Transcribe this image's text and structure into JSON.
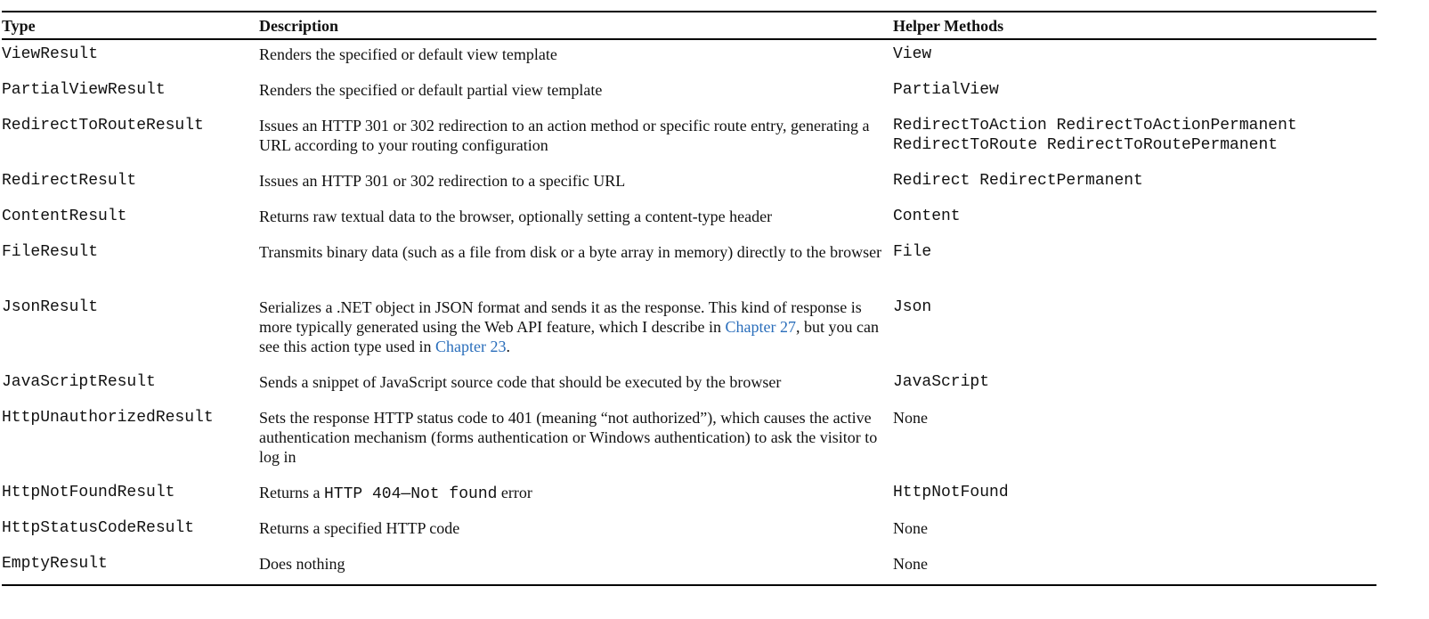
{
  "columns": {
    "type": "Type",
    "description": "Description",
    "helpers": "Helper Methods"
  },
  "link_color": "#2a6ebb",
  "rows": [
    {
      "type": "ViewResult",
      "description": "Renders the specified or default view template",
      "helpers_lines": [
        "View"
      ]
    },
    {
      "type": "PartialViewResult",
      "description": "Renders the specified or default partial view template",
      "helpers_lines": [
        "PartialView"
      ]
    },
    {
      "type": "RedirectToRouteResult",
      "description": "Issues an HTTP 301 or 302 redirection to an action method or specific route entry, generating a URL according to your routing configuration",
      "helpers_lines": [
        "RedirectToAction RedirectToActionPermanent",
        "RedirectToRoute RedirectToRoutePermanent"
      ]
    },
    {
      "type": "RedirectResult",
      "description": "Issues an HTTP 301 or 302 redirection to a specific URL",
      "helpers_lines": [
        "Redirect RedirectPermanent"
      ]
    },
    {
      "type": "ContentResult",
      "description": "Returns raw textual data to the browser, optionally setting a content-type header",
      "helpers_lines": [
        "Content"
      ]
    },
    {
      "type": "FileResult",
      "description": "Transmits binary data (such as a file from disk or a byte array in memory) directly to the browser",
      "helpers_lines": [
        "File"
      ]
    },
    {
      "type": "JsonResult",
      "description_parts": {
        "before": "Serializes a .NET object in JSON format and sends it as the response. This kind of response is more typically generated using the Web API feature, which I describe in ",
        "link1": "Chapter 27",
        "middle": ", but you can see this action type used in ",
        "link2": "Chapter 23",
        "after": "."
      },
      "helpers_lines": [
        "Json"
      ]
    },
    {
      "type": "JavaScriptResult",
      "description": "Sends a snippet of JavaScript source code that should be executed by the browser",
      "helpers_lines": [
        "JavaScript"
      ]
    },
    {
      "type": "HttpUnauthorizedResult",
      "description": "Sets the response HTTP status code to 401 (meaning “not authorized”), which causes the active authentication mechanism (forms authentication or Windows authentication) to ask the visitor to log in",
      "helpers_text": "None"
    },
    {
      "type": "HttpNotFoundResult",
      "description_parts": {
        "before": "Returns a ",
        "code": "HTTP 404—Not found",
        "after": " error"
      },
      "helpers_lines": [
        "HttpNotFound"
      ]
    },
    {
      "type": "HttpStatusCodeResult",
      "description": "Returns a specified HTTP code",
      "helpers_text": "None"
    },
    {
      "type": "EmptyResult",
      "description": "Does nothing",
      "helpers_text": "None"
    }
  ]
}
